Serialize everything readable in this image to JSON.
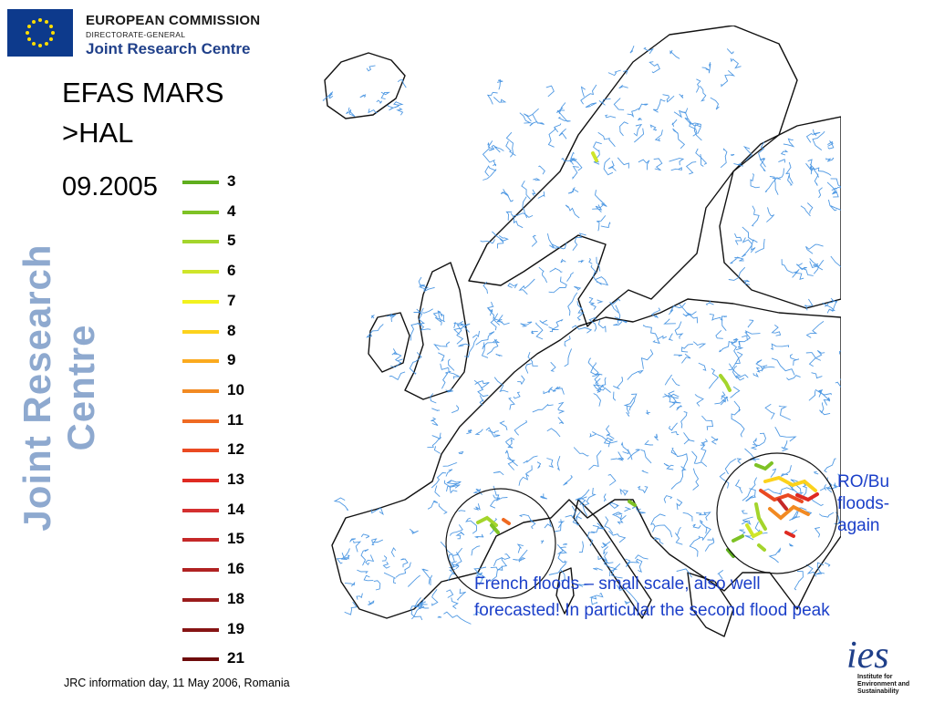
{
  "header": {
    "org": "EUROPEAN COMMISSION",
    "dg": "DIRECTORATE-GENERAL",
    "centre": "Joint Research Centre"
  },
  "side_banner": "Joint Research Centre",
  "title": {
    "line1": "EFAS MARS",
    "line2": ">HAL",
    "date": "09.2005"
  },
  "legend": {
    "items": [
      {
        "label": "3",
        "color": "#5fae1e"
      },
      {
        "label": "4",
        "color": "#7ec225"
      },
      {
        "label": "5",
        "color": "#a4d52c"
      },
      {
        "label": "6",
        "color": "#cfe52a"
      },
      {
        "label": "7",
        "color": "#f2f21e"
      },
      {
        "label": "8",
        "color": "#fcd21c"
      },
      {
        "label": "9",
        "color": "#fbaa1e"
      },
      {
        "label": "10",
        "color": "#f28a22"
      },
      {
        "label": "11",
        "color": "#ef6a22"
      },
      {
        "label": "12",
        "color": "#ea4a22"
      },
      {
        "label": "13",
        "color": "#df2a22"
      },
      {
        "label": "14",
        "color": "#d43030"
      },
      {
        "label": "15",
        "color": "#c52828"
      },
      {
        "label": "16",
        "color": "#b02222"
      },
      {
        "label": "18",
        "color": "#9a1c1c"
      },
      {
        "label": "19",
        "color": "#861414"
      },
      {
        "label": "21",
        "color": "#6e0c0c"
      }
    ]
  },
  "annotations": {
    "ro_bu": "RO/Bu floods-again",
    "french": "French floods – small scale, also well forecasted! In particular the second flood peak"
  },
  "footer": "JRC information day, 11 May 2006, Romania",
  "ies_logo": {
    "mark": "ies",
    "line1": "Institute for",
    "line2": "Environment and",
    "line3": "Sustainability"
  },
  "colors": {
    "river": "#3d8ee0",
    "coast": "#111111",
    "annotation": "#1b3fc9",
    "jrc_blue": "#20408a"
  }
}
